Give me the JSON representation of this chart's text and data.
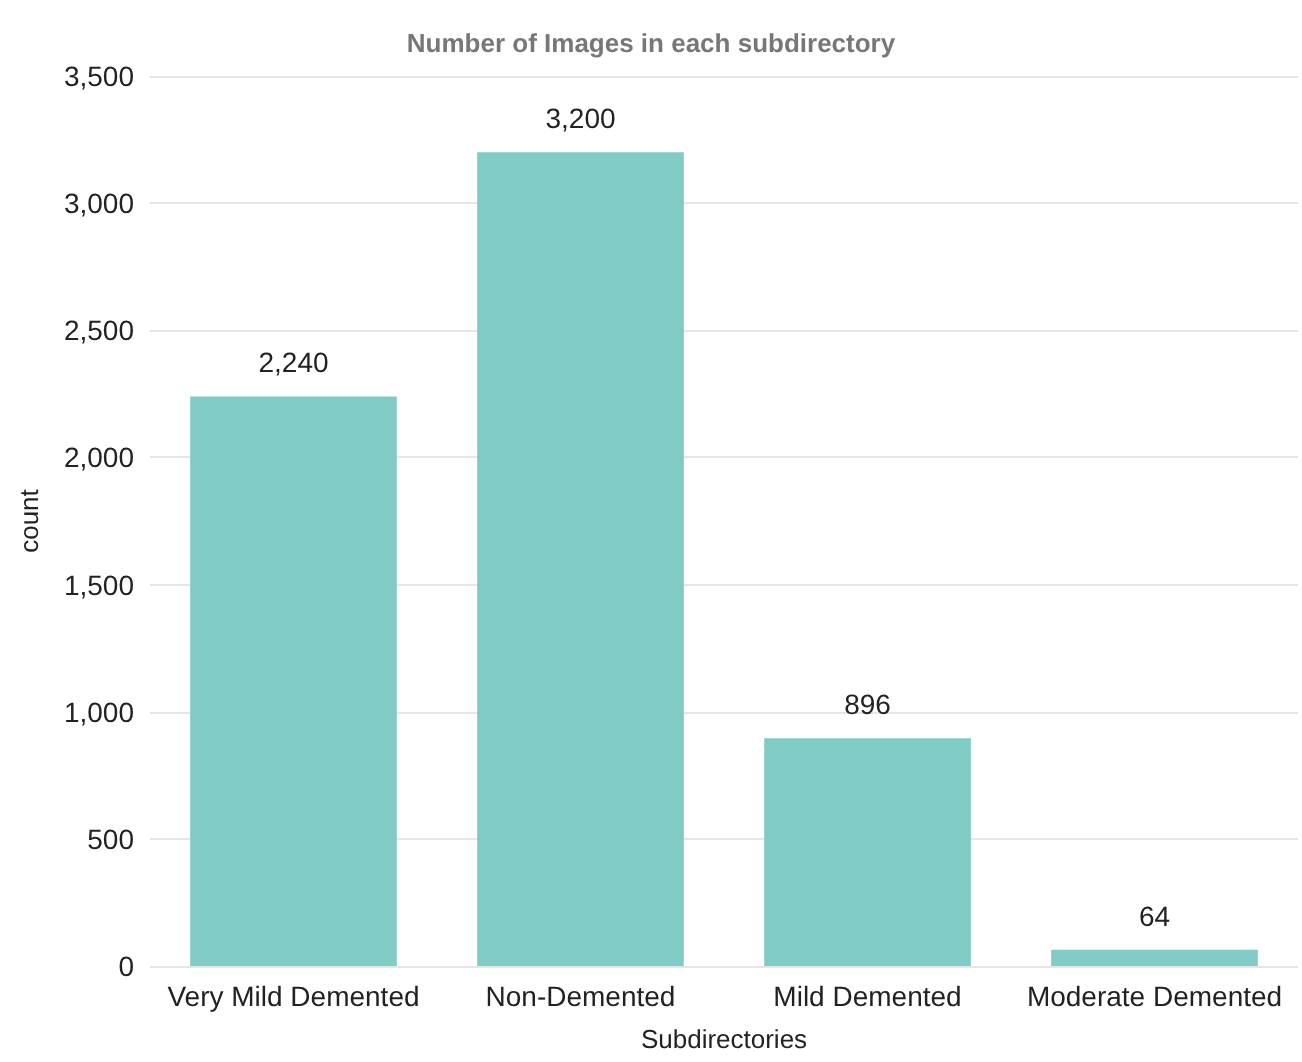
{
  "chart_data": {
    "type": "bar",
    "title": "Number of Images in each subdirectory",
    "xlabel": "Subdirectories",
    "ylabel": "count",
    "categories": [
      "Very Mild Demented",
      "Non-Demented",
      "Mild Demented",
      "Moderate Demented"
    ],
    "values": [
      2240,
      3200,
      896,
      64
    ],
    "color": "#80cbc4",
    "value_labels": [
      "2,240",
      "3,200",
      "896",
      "64"
    ],
    "ylim": [
      0,
      3500
    ],
    "yticks": [
      0,
      500,
      {
        "value": 1000,
        "label": "1,000"
      },
      {
        "value": 1500,
        "label": "1,500"
      },
      {
        "value": 2000,
        "label": "2,000"
      },
      {
        "value": 2500,
        "label": "2,500"
      },
      {
        "value": 3000,
        "label": "3,000"
      },
      {
        "value": 3500,
        "label": "3,500"
      }
    ],
    "grid": "y"
  }
}
